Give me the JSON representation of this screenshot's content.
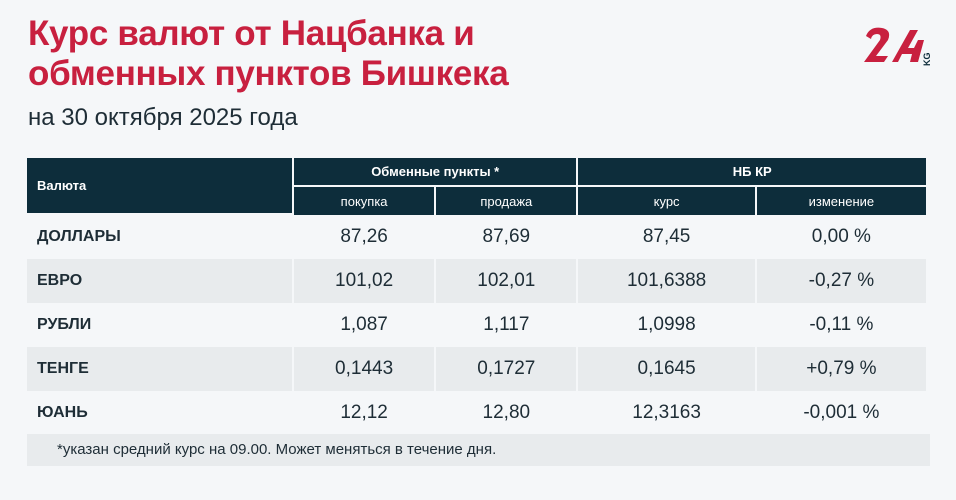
{
  "title_line1": "Курс валют от Нацбанка и",
  "title_line2": "обменных пунктов Бишкека",
  "subtitle": "на 30 октября 2025 года",
  "logo": {
    "text": "24",
    "suffix": "KG",
    "colors": {
      "red": "#c8203f",
      "dark": "#0d2d3b"
    }
  },
  "table": {
    "currency_header": "Валюта",
    "group1": "Обменные пункты *",
    "group2": "НБ КР",
    "sub": [
      "покупка",
      "продажа",
      "курс",
      "изменение"
    ],
    "rows": [
      {
        "name": "ДОЛЛАРЫ",
        "buy": "87,26",
        "sell": "87,69",
        "rate": "87,45",
        "change": "0,00 %"
      },
      {
        "name": "ЕВРО",
        "buy": "101,02",
        "sell": "102,01",
        "rate": "101,6388",
        "change": "-0,27 %"
      },
      {
        "name": "РУБЛИ",
        "buy": "1,087",
        "sell": "1,117",
        "rate": "1,0998",
        "change": "-0,11 %"
      },
      {
        "name": "ТЕНГЕ",
        "buy": "0,1443",
        "sell": "0,1727",
        "rate": "0,1645",
        "change": "+0,79 %"
      },
      {
        "name": "ЮАНЬ",
        "buy": "12,12",
        "sell": "12,80",
        "rate": "12,3163",
        "change": "-0,001 %"
      }
    ]
  },
  "footnote": "*указан средний курс на 09.00. Может меняться в течение дня."
}
